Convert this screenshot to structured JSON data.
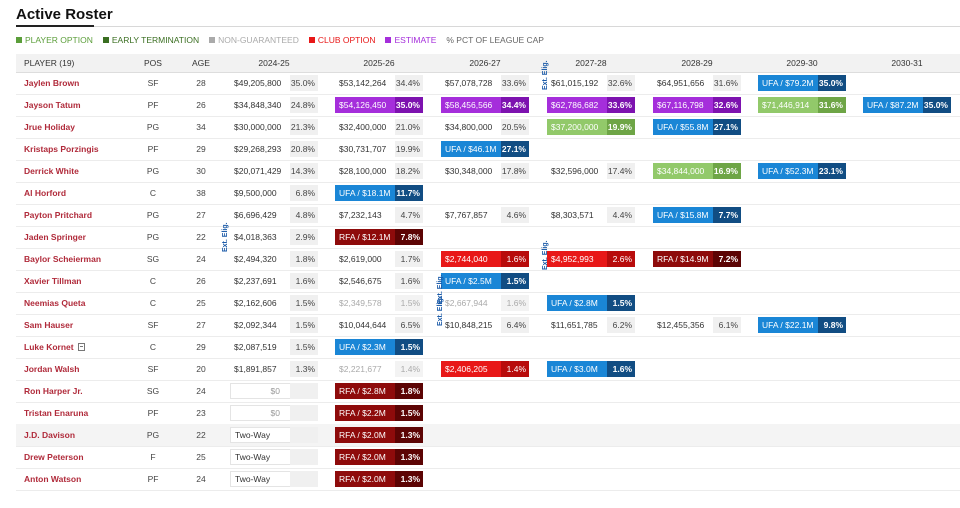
{
  "page": {
    "title": "Active Roster"
  },
  "legend": [
    {
      "label": "PLAYER OPTION",
      "color": "#5b9e3a"
    },
    {
      "label": "EARLY TERMINATION",
      "color": "#3a6e21"
    },
    {
      "label": "NON-GUARANTEED",
      "color": "#aaaaaa"
    },
    {
      "label": "CLUB OPTION",
      "color": "#e81818"
    },
    {
      "label": "ESTIMATE",
      "color": "#a52edb"
    },
    {
      "label": "% PCT OF LEAGUE CAP",
      "color": ""
    }
  ],
  "columns": {
    "player": "PLAYER (19)",
    "pos": "POS",
    "age": "AGE",
    "seasons": [
      "2024-25",
      "2025-26",
      "2026-27",
      "2027-28",
      "2028-29",
      "2029-30",
      "2030-31"
    ]
  },
  "annotations": {
    "elig": "Ext. Elig."
  },
  "players": [
    {
      "name": "Jaylen Brown",
      "pos": "SF",
      "age": "28",
      "cells": [
        {
          "amount": "$49,205,800",
          "pct": "35.0%",
          "kind": "plain"
        },
        {
          "amount": "$53,142,264",
          "pct": "34.4%",
          "kind": "plain"
        },
        {
          "amount": "$57,078,728",
          "pct": "33.6%",
          "kind": "plain"
        },
        {
          "amount": "$61,015,192",
          "pct": "32.6%",
          "kind": "plain"
        },
        {
          "amount": "$64,951,656",
          "pct": "31.6%",
          "kind": "plain"
        },
        {
          "amount": "UFA / $79.2M",
          "pct": "35.0%",
          "kind": "ufa"
        },
        null
      ]
    },
    {
      "name": "Jayson Tatum",
      "pos": "PF",
      "age": "26",
      "cells": [
        {
          "amount": "$34,848,340",
          "pct": "24.8%",
          "kind": "plain"
        },
        {
          "amount": "$54,126,450",
          "pct": "35.0%",
          "kind": "est"
        },
        {
          "amount": "$58,456,566",
          "pct": "34.4%",
          "kind": "est"
        },
        {
          "amount": "$62,786,682",
          "pct": "33.6%",
          "kind": "est"
        },
        {
          "amount": "$67,116,798",
          "pct": "32.6%",
          "kind": "est"
        },
        {
          "amount": "$71,446,914",
          "pct": "31.6%",
          "kind": "opt"
        },
        {
          "amount": "UFA / $87.2M",
          "pct": "35.0%",
          "kind": "ufa"
        }
      ]
    },
    {
      "name": "Jrue Holiday",
      "pos": "PG",
      "age": "34",
      "cells": [
        {
          "amount": "$30,000,000",
          "pct": "21.3%",
          "kind": "plain"
        },
        {
          "amount": "$32,400,000",
          "pct": "21.0%",
          "kind": "plain"
        },
        {
          "amount": "$34,800,000",
          "pct": "20.5%",
          "kind": "plain"
        },
        {
          "amount": "$37,200,000",
          "pct": "19.9%",
          "kind": "opt"
        },
        {
          "amount": "UFA / $55.8M",
          "pct": "27.1%",
          "kind": "ufa"
        },
        null,
        null
      ]
    },
    {
      "name": "Kristaps Porzingis",
      "pos": "PF",
      "age": "29",
      "cells": [
        {
          "amount": "$29,268,293",
          "pct": "20.8%",
          "kind": "plain"
        },
        {
          "amount": "$30,731,707",
          "pct": "19.9%",
          "kind": "plain"
        },
        {
          "amount": "UFA / $46.1M",
          "pct": "27.1%",
          "kind": "ufa"
        },
        null,
        null,
        null,
        null
      ]
    },
    {
      "name": "Derrick White",
      "pos": "PG",
      "age": "30",
      "cells": [
        {
          "amount": "$20,071,429",
          "pct": "14.3%",
          "kind": "plain"
        },
        {
          "amount": "$28,100,000",
          "pct": "18.2%",
          "kind": "plain"
        },
        {
          "amount": "$30,348,000",
          "pct": "17.8%",
          "kind": "plain"
        },
        {
          "amount": "$32,596,000",
          "pct": "17.4%",
          "kind": "plain"
        },
        {
          "amount": "$34,844,000",
          "pct": "16.9%",
          "kind": "opt"
        },
        {
          "amount": "UFA / $52.3M",
          "pct": "23.1%",
          "kind": "ufa"
        },
        null
      ]
    },
    {
      "name": "Al Horford",
      "pos": "C",
      "age": "38",
      "cells": [
        {
          "amount": "$9,500,000",
          "pct": "6.8%",
          "kind": "plain"
        },
        {
          "amount": "UFA / $18.1M",
          "pct": "11.7%",
          "kind": "ufa"
        },
        null,
        null,
        null,
        null,
        null
      ]
    },
    {
      "name": "Payton Pritchard",
      "pos": "PG",
      "age": "27",
      "cells": [
        {
          "amount": "$6,696,429",
          "pct": "4.8%",
          "kind": "plain"
        },
        {
          "amount": "$7,232,143",
          "pct": "4.7%",
          "kind": "plain"
        },
        {
          "amount": "$7,767,857",
          "pct": "4.6%",
          "kind": "plain"
        },
        {
          "amount": "$8,303,571",
          "pct": "4.4%",
          "kind": "plain"
        },
        {
          "amount": "UFA / $15.8M",
          "pct": "7.7%",
          "kind": "ufa"
        },
        null,
        null
      ]
    },
    {
      "name": "Jaden Springer",
      "pos": "PG",
      "age": "22",
      "cells": [
        {
          "amount": "$4,018,363",
          "pct": "2.9%",
          "kind": "plain"
        },
        {
          "amount": "RFA / $12.1M",
          "pct": "7.8%",
          "kind": "rfa"
        },
        null,
        null,
        null,
        null,
        null
      ]
    },
    {
      "name": "Baylor Scheierman",
      "pos": "SG",
      "age": "24",
      "cells": [
        {
          "amount": "$2,494,320",
          "pct": "1.8%",
          "kind": "plain"
        },
        {
          "amount": "$2,619,000",
          "pct": "1.7%",
          "kind": "plain"
        },
        {
          "amount": "$2,744,040",
          "pct": "1.6%",
          "kind": "club"
        },
        {
          "amount": "$4,952,993",
          "pct": "2.6%",
          "kind": "club"
        },
        {
          "amount": "RFA / $14.9M",
          "pct": "7.2%",
          "kind": "rfa"
        },
        null,
        null
      ]
    },
    {
      "name": "Xavier Tillman",
      "pos": "C",
      "age": "26",
      "cells": [
        {
          "amount": "$2,237,691",
          "pct": "1.6%",
          "kind": "plain"
        },
        {
          "amount": "$2,546,675",
          "pct": "1.6%",
          "kind": "plain"
        },
        {
          "amount": "UFA / $2.5M",
          "pct": "1.5%",
          "kind": "ufa"
        },
        null,
        null,
        null,
        null
      ]
    },
    {
      "name": "Neemias Queta",
      "pos": "C",
      "age": "25",
      "cells": [
        {
          "amount": "$2,162,606",
          "pct": "1.5%",
          "kind": "plain"
        },
        {
          "amount": "$2,349,578",
          "pct": "1.5%",
          "kind": "faded"
        },
        {
          "amount": "$2,667,944",
          "pct": "1.6%",
          "kind": "faded"
        },
        {
          "amount": "UFA / $2.8M",
          "pct": "1.5%",
          "kind": "ufa"
        },
        null,
        null,
        null
      ]
    },
    {
      "name": "Sam Hauser",
      "pos": "SF",
      "age": "27",
      "cells": [
        {
          "amount": "$2,092,344",
          "pct": "1.5%",
          "kind": "plain"
        },
        {
          "amount": "$10,044,644",
          "pct": "6.5%",
          "kind": "plain"
        },
        {
          "amount": "$10,848,215",
          "pct": "6.4%",
          "kind": "plain"
        },
        {
          "amount": "$11,651,785",
          "pct": "6.2%",
          "kind": "plain"
        },
        {
          "amount": "$12,455,356",
          "pct": "6.1%",
          "kind": "plain"
        },
        {
          "amount": "UFA / $22.1M",
          "pct": "9.8%",
          "kind": "ufa"
        },
        null
      ]
    },
    {
      "name": "Luke Kornet",
      "pos": "C",
      "age": "29",
      "note": true,
      "cells": [
        {
          "amount": "$2,087,519",
          "pct": "1.5%",
          "kind": "plain"
        },
        {
          "amount": "UFA / $2.3M",
          "pct": "1.5%",
          "kind": "ufa"
        },
        null,
        null,
        null,
        null,
        null
      ]
    },
    {
      "name": "Jordan Walsh",
      "pos": "SF",
      "age": "20",
      "cells": [
        {
          "amount": "$1,891,857",
          "pct": "1.3%",
          "kind": "plain"
        },
        {
          "amount": "$2,221,677",
          "pct": "1.4%",
          "kind": "faded"
        },
        {
          "amount": "$2,406,205",
          "pct": "1.4%",
          "kind": "club"
        },
        {
          "amount": "UFA / $3.0M",
          "pct": "1.6%",
          "kind": "ufa"
        },
        null,
        null,
        null
      ]
    },
    {
      "name": "Ron Harper Jr.",
      "pos": "SG",
      "age": "24",
      "cells": [
        {
          "amount": "$0",
          "pct": "",
          "kind": "zero"
        },
        {
          "amount": "RFA / $2.8M",
          "pct": "1.8%",
          "kind": "rfa"
        },
        null,
        null,
        null,
        null,
        null
      ]
    },
    {
      "name": "Tristan Enaruna",
      "pos": "PF",
      "age": "23",
      "cells": [
        {
          "amount": "$0",
          "pct": "",
          "kind": "zero"
        },
        {
          "amount": "RFA / $2.2M",
          "pct": "1.5%",
          "kind": "rfa"
        },
        null,
        null,
        null,
        null,
        null
      ]
    },
    {
      "name": "J.D. Davison",
      "pos": "PG",
      "age": "22",
      "shade": true,
      "cells": [
        {
          "amount": "Two-Way",
          "pct": "",
          "kind": "tw"
        },
        {
          "amount": "RFA / $2.0M",
          "pct": "1.3%",
          "kind": "rfa"
        },
        null,
        null,
        null,
        null,
        null
      ]
    },
    {
      "name": "Drew Peterson",
      "pos": "F",
      "age": "25",
      "cells": [
        {
          "amount": "Two-Way",
          "pct": "",
          "kind": "tw"
        },
        {
          "amount": "RFA / $2.0M",
          "pct": "1.3%",
          "kind": "rfa"
        },
        null,
        null,
        null,
        null,
        null
      ]
    },
    {
      "name": "Anton Watson",
      "pos": "PF",
      "age": "24",
      "cells": [
        {
          "amount": "Two-Way",
          "pct": "",
          "kind": "tw"
        },
        {
          "amount": "RFA / $2.0M",
          "pct": "1.3%",
          "kind": "rfa"
        },
        null,
        null,
        null,
        null,
        null
      ]
    }
  ]
}
